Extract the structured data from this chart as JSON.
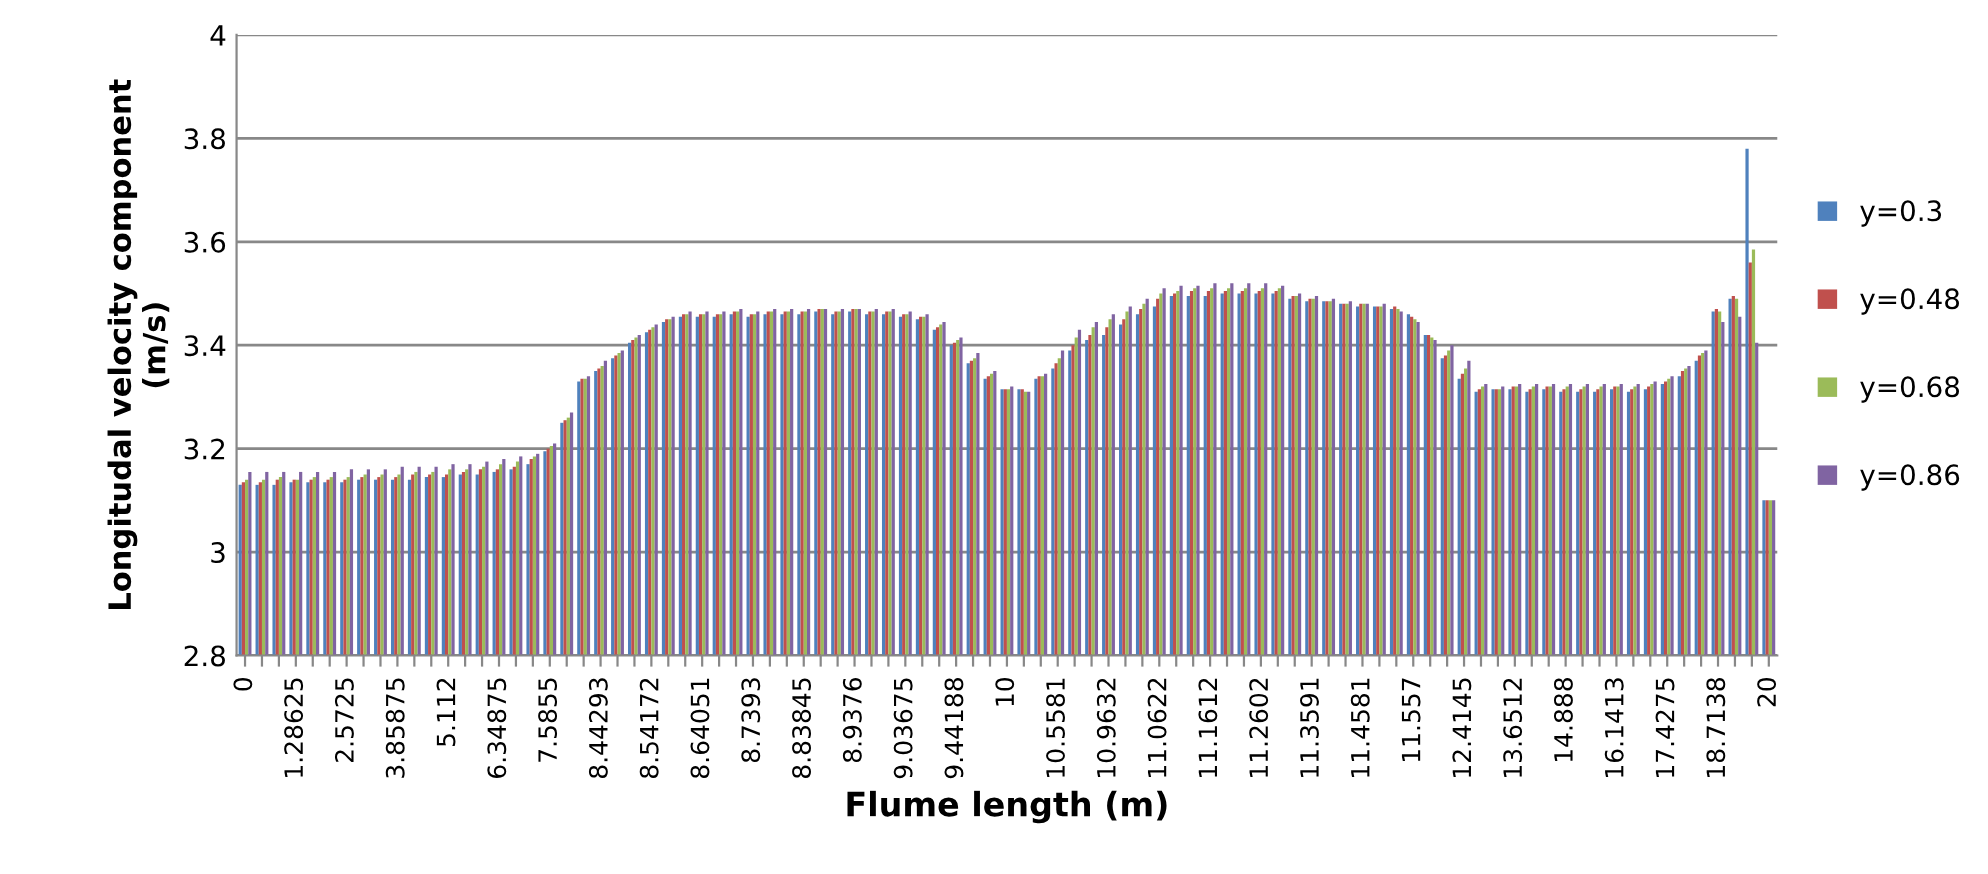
{
  "chart_data": {
    "type": "bar",
    "xlabel": "Flume length (m)",
    "ylabel": "Longitudal velocity component\n(m/s)",
    "categories": [
      "0",
      null,
      null,
      "1.28625",
      null,
      null,
      "2.5725",
      null,
      null,
      "3.85875",
      null,
      null,
      "5.112",
      null,
      null,
      "6.34875",
      null,
      null,
      "7.5855",
      null,
      null,
      "8.44293",
      null,
      null,
      "8.54172",
      null,
      null,
      "8.64051",
      null,
      null,
      "8.7393",
      null,
      null,
      "8.83845",
      null,
      null,
      "8.9376",
      null,
      null,
      "9.03675",
      null,
      null,
      "9.44188",
      null,
      null,
      "10",
      null,
      null,
      "10.5581",
      null,
      null,
      "10.9632",
      null,
      null,
      "11.0622",
      null,
      null,
      "11.1612",
      null,
      null,
      "11.2602",
      null,
      null,
      "11.3591",
      null,
      null,
      "11.4581",
      null,
      null,
      "11.557",
      null,
      null,
      "12.4145",
      null,
      null,
      "13.6512",
      null,
      null,
      "14.888",
      null,
      null,
      "16.1413",
      null,
      null,
      "17.4275",
      null,
      null,
      "18.7138",
      null,
      null,
      "20"
    ],
    "series": [
      {
        "name": "y=0.3",
        "color": "#4f81bd",
        "values": [
          3.13,
          3.13,
          3.13,
          3.135,
          3.135,
          3.135,
          3.135,
          3.14,
          3.14,
          3.14,
          3.14,
          3.145,
          3.145,
          3.15,
          3.15,
          3.155,
          3.16,
          3.17,
          3.195,
          3.25,
          3.33,
          3.35,
          3.375,
          3.405,
          3.425,
          3.445,
          3.455,
          3.455,
          3.455,
          3.46,
          3.455,
          3.46,
          3.46,
          3.46,
          3.465,
          3.46,
          3.465,
          3.46,
          3.46,
          3.455,
          3.45,
          3.43,
          3.4,
          3.365,
          3.335,
          3.315,
          3.315,
          3.335,
          3.355,
          3.39,
          3.41,
          3.42,
          3.44,
          3.46,
          3.475,
          3.495,
          3.495,
          3.495,
          3.5,
          3.5,
          3.5,
          3.5,
          3.49,
          3.485,
          3.485,
          3.48,
          3.475,
          3.475,
          3.47,
          3.46,
          3.42,
          3.375,
          3.335,
          3.31,
          3.315,
          3.315,
          3.31,
          3.315,
          3.31,
          3.31,
          3.31,
          3.315,
          3.31,
          3.315,
          3.325,
          3.34,
          3.37,
          3.465,
          3.49,
          3.78,
          3.1
        ]
      },
      {
        "name": "y=0.48",
        "color": "#c0504d",
        "values": [
          3.135,
          3.135,
          3.14,
          3.14,
          3.14,
          3.14,
          3.14,
          3.145,
          3.145,
          3.145,
          3.15,
          3.15,
          3.15,
          3.155,
          3.16,
          3.16,
          3.165,
          3.18,
          3.2,
          3.255,
          3.335,
          3.355,
          3.38,
          3.41,
          3.43,
          3.45,
          3.46,
          3.46,
          3.46,
          3.465,
          3.46,
          3.465,
          3.465,
          3.465,
          3.47,
          3.465,
          3.47,
          3.465,
          3.465,
          3.46,
          3.455,
          3.435,
          3.405,
          3.37,
          3.34,
          3.315,
          3.315,
          3.34,
          3.365,
          3.4,
          3.42,
          3.435,
          3.45,
          3.47,
          3.49,
          3.5,
          3.505,
          3.505,
          3.505,
          3.505,
          3.505,
          3.505,
          3.495,
          3.49,
          3.485,
          3.48,
          3.48,
          3.475,
          3.475,
          3.455,
          3.42,
          3.38,
          3.345,
          3.315,
          3.315,
          3.32,
          3.315,
          3.32,
          3.315,
          3.315,
          3.315,
          3.32,
          3.315,
          3.32,
          3.33,
          3.35,
          3.38,
          3.47,
          3.495,
          3.56,
          3.1
        ]
      },
      {
        "name": "y=0.68",
        "color": "#9bbb59",
        "values": [
          3.14,
          3.14,
          3.145,
          3.14,
          3.145,
          3.145,
          3.145,
          3.15,
          3.15,
          3.15,
          3.155,
          3.155,
          3.16,
          3.16,
          3.165,
          3.17,
          3.175,
          3.185,
          3.205,
          3.26,
          3.335,
          3.36,
          3.385,
          3.415,
          3.435,
          3.45,
          3.46,
          3.46,
          3.46,
          3.465,
          3.46,
          3.465,
          3.465,
          3.465,
          3.47,
          3.465,
          3.47,
          3.465,
          3.465,
          3.46,
          3.455,
          3.44,
          3.41,
          3.375,
          3.345,
          3.315,
          3.31,
          3.34,
          3.375,
          3.415,
          3.435,
          3.45,
          3.465,
          3.48,
          3.5,
          3.505,
          3.51,
          3.51,
          3.51,
          3.51,
          3.51,
          3.51,
          3.495,
          3.49,
          3.485,
          3.48,
          3.48,
          3.475,
          3.47,
          3.45,
          3.415,
          3.39,
          3.355,
          3.32,
          3.315,
          3.32,
          3.32,
          3.32,
          3.32,
          3.32,
          3.32,
          3.32,
          3.32,
          3.325,
          3.335,
          3.355,
          3.385,
          3.465,
          3.49,
          3.585,
          3.1
        ]
      },
      {
        "name": "y=0.86",
        "color": "#8064a2",
        "values": [
          3.155,
          3.155,
          3.155,
          3.155,
          3.155,
          3.155,
          3.16,
          3.16,
          3.16,
          3.165,
          3.165,
          3.165,
          3.17,
          3.17,
          3.175,
          3.18,
          3.185,
          3.19,
          3.21,
          3.27,
          3.34,
          3.37,
          3.39,
          3.42,
          3.44,
          3.455,
          3.465,
          3.465,
          3.465,
          3.47,
          3.465,
          3.47,
          3.47,
          3.47,
          3.47,
          3.47,
          3.47,
          3.47,
          3.47,
          3.465,
          3.46,
          3.445,
          3.415,
          3.385,
          3.35,
          3.32,
          3.31,
          3.345,
          3.39,
          3.43,
          3.445,
          3.46,
          3.475,
          3.49,
          3.51,
          3.515,
          3.515,
          3.52,
          3.52,
          3.52,
          3.52,
          3.515,
          3.5,
          3.495,
          3.49,
          3.485,
          3.48,
          3.48,
          3.465,
          3.445,
          3.41,
          3.4,
          3.37,
          3.325,
          3.32,
          3.325,
          3.325,
          3.325,
          3.325,
          3.325,
          3.325,
          3.325,
          3.325,
          3.33,
          3.34,
          3.36,
          3.39,
          3.445,
          3.455,
          3.405,
          3.1
        ]
      }
    ],
    "ylim": [
      2.8,
      4
    ],
    "yticks": [
      2.8,
      3,
      3.2,
      3.4,
      3.6,
      3.8,
      4
    ],
    "grid": "y",
    "legend": "right"
  }
}
